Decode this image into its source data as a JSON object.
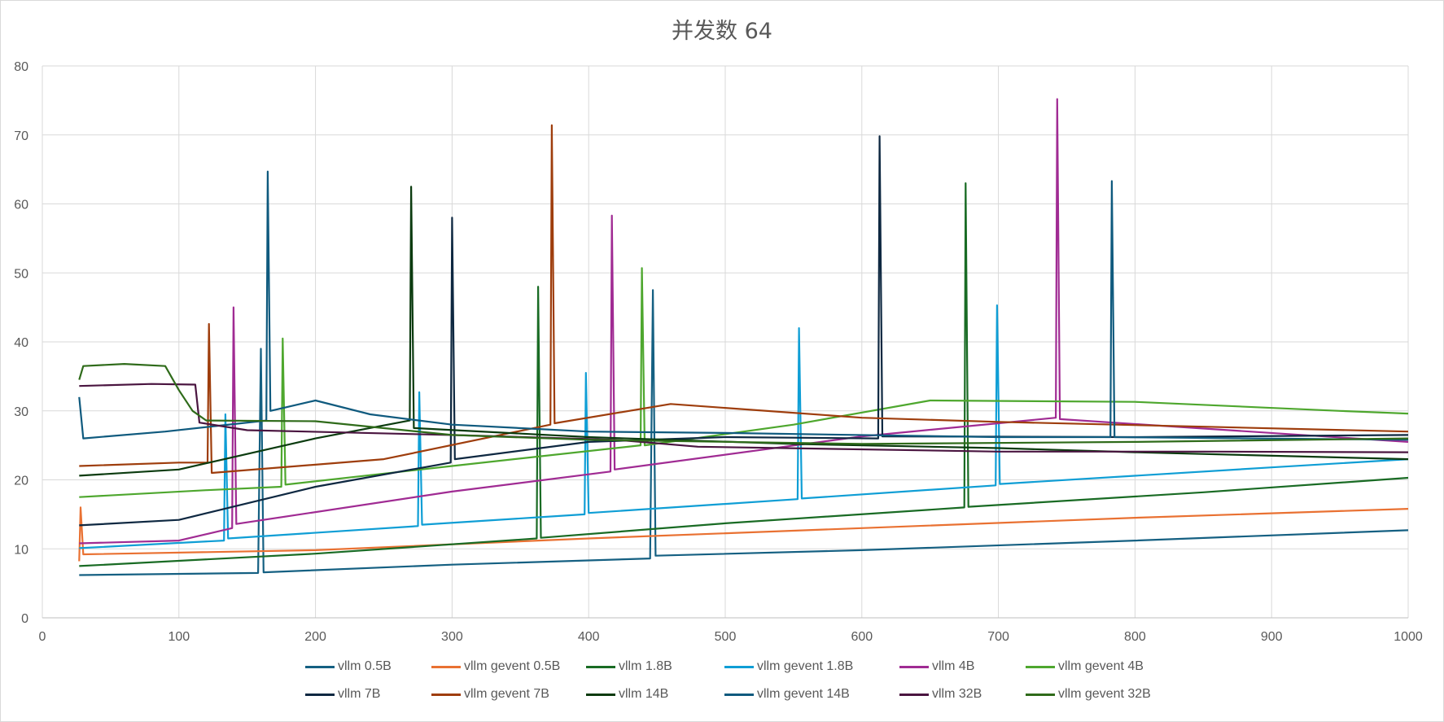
{
  "chart_data": {
    "type": "line",
    "title": "并发数 64",
    "xlabel": "",
    "ylabel": "",
    "xlim": [
      0,
      1000
    ],
    "ylim": [
      0,
      80
    ],
    "x_ticks": [
      "0",
      "100",
      "200",
      "300",
      "400",
      "500",
      "600",
      "700",
      "800",
      "900",
      "1000"
    ],
    "y_ticks": [
      "0",
      "10",
      "20",
      "30",
      "40",
      "50",
      "60",
      "70",
      "80"
    ],
    "grid": true,
    "legend_position": "bottom",
    "series": [
      {
        "name": "vllm 0.5B",
        "color": "#156082",
        "points": [
          [
            27,
            6.2
          ],
          [
            158,
            6.5
          ],
          [
            160,
            39
          ],
          [
            162,
            6.6
          ],
          [
            300,
            7.7
          ],
          [
            445,
            8.6
          ],
          [
            447,
            47.5
          ],
          [
            449,
            9
          ],
          [
            600,
            9.8
          ],
          [
            800,
            11.2
          ],
          [
            1000,
            12.7
          ]
        ]
      },
      {
        "name": "vllm gevent 0.5B",
        "color": "#E97132",
        "points": [
          [
            27,
            8.2
          ],
          [
            28,
            16
          ],
          [
            30,
            9.2
          ],
          [
            200,
            9.8
          ],
          [
            400,
            11.5
          ],
          [
            600,
            13
          ],
          [
            800,
            14.5
          ],
          [
            1000,
            15.8
          ]
        ]
      },
      {
        "name": "vllm 1.8B",
        "color": "#196B24",
        "points": [
          [
            27,
            7.5
          ],
          [
            200,
            9.3
          ],
          [
            362,
            11.5
          ],
          [
            363,
            48
          ],
          [
            365,
            11.6
          ],
          [
            500,
            13.7
          ],
          [
            675,
            16
          ],
          [
            676,
            63
          ],
          [
            678,
            16.1
          ],
          [
            850,
            18.2
          ],
          [
            1000,
            20.3
          ]
        ]
      },
      {
        "name": "vllm gevent 1.8B",
        "color": "#0F9ED5",
        "points": [
          [
            27,
            10.1
          ],
          [
            133,
            11.2
          ],
          [
            134,
            29.5
          ],
          [
            136,
            11.5
          ],
          [
            275,
            13.3
          ],
          [
            276,
            32.7
          ],
          [
            278,
            13.5
          ],
          [
            397,
            15
          ],
          [
            398,
            35.5
          ],
          [
            400,
            15.2
          ],
          [
            553,
            17.2
          ],
          [
            554,
            42
          ],
          [
            556,
            17.3
          ],
          [
            698,
            19.2
          ],
          [
            699,
            45.3
          ],
          [
            701,
            19.4
          ],
          [
            900,
            21.8
          ],
          [
            1000,
            23
          ]
        ]
      },
      {
        "name": "vllm 4B",
        "color": "#A02B93",
        "points": [
          [
            27,
            10.8
          ],
          [
            100,
            11.2
          ],
          [
            139,
            13
          ],
          [
            140,
            45
          ],
          [
            142,
            13.6
          ],
          [
            300,
            18.3
          ],
          [
            416,
            21.2
          ],
          [
            417,
            58.3
          ],
          [
            419,
            21.5
          ],
          [
            600,
            26.3
          ],
          [
            742,
            29
          ],
          [
            743,
            75.2
          ],
          [
            745,
            28.8
          ],
          [
            1000,
            25.5
          ]
        ]
      },
      {
        "name": "vllm gevent 4B",
        "color": "#4EA72E",
        "points": [
          [
            27,
            17.5
          ],
          [
            120,
            18.5
          ],
          [
            175,
            19
          ],
          [
            176,
            40.5
          ],
          [
            178,
            19.3
          ],
          [
            300,
            22
          ],
          [
            438,
            25
          ],
          [
            439,
            50.7
          ],
          [
            441,
            25
          ],
          [
            550,
            28
          ],
          [
            650,
            31.5
          ],
          [
            800,
            31.3
          ],
          [
            950,
            30
          ],
          [
            1000,
            29.6
          ]
        ]
      },
      {
        "name": "vllm 7B",
        "color": "#0E2841",
        "points": [
          [
            27,
            13.4
          ],
          [
            100,
            14.2
          ],
          [
            200,
            19
          ],
          [
            299,
            22.5
          ],
          [
            300,
            58
          ],
          [
            302,
            23
          ],
          [
            400,
            25.5
          ],
          [
            500,
            26.2
          ],
          [
            612,
            26
          ],
          [
            613,
            69.8
          ],
          [
            615,
            26.3
          ],
          [
            800,
            26.2
          ],
          [
            1000,
            26.5
          ]
        ]
      },
      {
        "name": "vllm gevent 7B",
        "color": "#9E3D0C",
        "points": [
          [
            27,
            22
          ],
          [
            100,
            22.5
          ],
          [
            121,
            22.5
          ],
          [
            122,
            42.6
          ],
          [
            124,
            21
          ],
          [
            250,
            23
          ],
          [
            372,
            28
          ],
          [
            373,
            71.4
          ],
          [
            375,
            28.2
          ],
          [
            460,
            31
          ],
          [
            600,
            29
          ],
          [
            700,
            28.4
          ],
          [
            850,
            27.7
          ],
          [
            1000,
            27
          ]
        ]
      },
      {
        "name": "vllm 14B",
        "color": "#0B3B0F",
        "points": [
          [
            27,
            20.6
          ],
          [
            100,
            21.5
          ],
          [
            200,
            26
          ],
          [
            269,
            28.6
          ],
          [
            270,
            62.5
          ],
          [
            272,
            27.5
          ],
          [
            400,
            26.2
          ],
          [
            550,
            25.2
          ],
          [
            700,
            24.6
          ],
          [
            800,
            24
          ],
          [
            1000,
            23
          ]
        ]
      },
      {
        "name": "vllm gevent 14B",
        "color": "#0F5A7E",
        "points": [
          [
            27,
            32
          ],
          [
            30,
            26
          ],
          [
            90,
            27
          ],
          [
            164,
            28.6
          ],
          [
            165,
            64.7
          ],
          [
            167,
            30
          ],
          [
            200,
            31.5
          ],
          [
            240,
            29.5
          ],
          [
            300,
            28
          ],
          [
            400,
            27
          ],
          [
            500,
            26.8
          ],
          [
            700,
            26.2
          ],
          [
            782,
            26.2
          ],
          [
            783,
            63.3
          ],
          [
            785,
            26.2
          ],
          [
            1000,
            25.8
          ]
        ]
      },
      {
        "name": "vllm 32B",
        "color": "#4A1540",
        "points": [
          [
            27,
            33.6
          ],
          [
            80,
            33.9
          ],
          [
            112,
            33.8
          ],
          [
            115,
            28.3
          ],
          [
            150,
            27.2
          ],
          [
            300,
            26.5
          ],
          [
            420,
            25.8
          ],
          [
            480,
            24.8
          ],
          [
            700,
            24.1
          ],
          [
            850,
            24.1
          ],
          [
            1000,
            24
          ]
        ]
      },
      {
        "name": "vllm gevent 32B",
        "color": "#2F6B1A",
        "points": [
          [
            27,
            34.5
          ],
          [
            30,
            36.5
          ],
          [
            60,
            36.8
          ],
          [
            90,
            36.5
          ],
          [
            100,
            33
          ],
          [
            110,
            30
          ],
          [
            120,
            28.6
          ],
          [
            200,
            28.5
          ],
          [
            300,
            26.5
          ],
          [
            400,
            25.8
          ],
          [
            600,
            25.2
          ],
          [
            800,
            25.5
          ],
          [
            1000,
            26
          ]
        ]
      }
    ]
  }
}
